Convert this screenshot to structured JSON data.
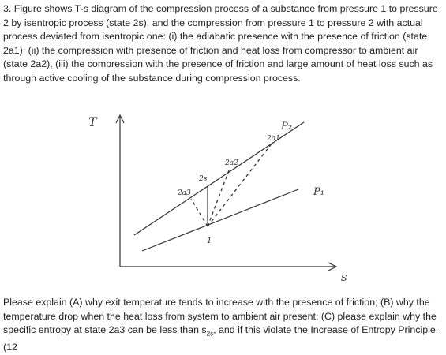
{
  "question": {
    "paragraph1": "3. Figure shows T-s diagram of the compression process of a substance from pressure 1 to pressure 2 by isentropic process (state 2s), and the compression from pressure 1 to pressure 2 with actual process deviated from isentropic one: (i) the adiabatic presence with the presence of friction (state 2a1); (ii) the compression with presence of friction and heat loss from compressor to ambient air (state 2a2), (iii) the compression with the presence of friction and large amount of heat loss such as through active cooling of the substance during compression process.",
    "paragraph2": {
      "before": "Please explain (A) why exit temperature tends to increase with the presence of friction; (B) why the temperature drop when the heat loss from system to ambient air present; (C) please explain why the specific entropy at state 2a3 can be less than ",
      "symbol": "s",
      "subscript": "2s",
      "after": ", and if this violate the Increase of Entropy Principle. (12"
    }
  },
  "diagram": {
    "y_axis": "T",
    "x_axis": "s",
    "p2": "P₂",
    "p1": "P₁",
    "state1": "1",
    "state2s": "2s",
    "state2a1": "2a1",
    "state2a2": "2a2",
    "state2a3": "2a3"
  }
}
